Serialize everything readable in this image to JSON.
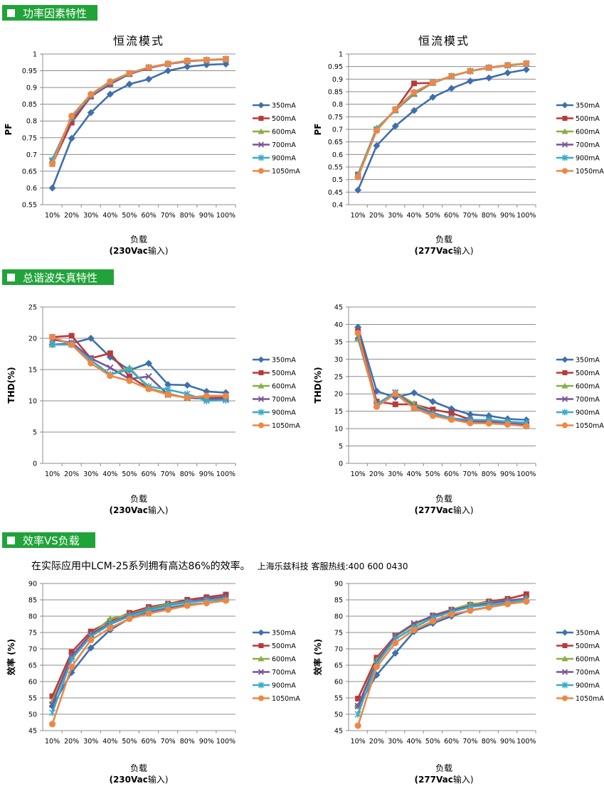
{
  "sections": {
    "pf": "功率因素特性",
    "thd": "总谐波失真特性",
    "eff": "效率VS负载"
  },
  "intro": {
    "text": "在实际应用中LCM-25系列拥有高达86%的效率。",
    "contact": "上海乐兹科技 客服热线:400 600 0430"
  },
  "colors": {
    "350mA": "#3f6fad",
    "500mA": "#b93a3a",
    "600mA": "#89ad4a",
    "700mA": "#7a5596",
    "900mA": "#3aaacb",
    "1050mA": "#ee8745",
    "header_bg": "#21a33a"
  },
  "charts": [
    {
      "title": "恒流模式",
      "xlabel": "负载",
      "sub_bold": "(230Vac",
      "sub_rest": "输入)"
    },
    {
      "title": "恒流模式",
      "xlabel": "负载",
      "sub_bold": "(277Vac",
      "sub_rest": "输入)"
    },
    {
      "title": "",
      "xlabel": "负载",
      "sub_bold": "(230Vac",
      "sub_rest": "输入)"
    },
    {
      "title": "",
      "xlabel": "负载",
      "sub_bold": "(277Vac",
      "sub_rest": "输入)"
    },
    {
      "title": "",
      "xlabel": "负载",
      "sub_bold": "(230Vac",
      "sub_rest": "输入)"
    },
    {
      "title": "",
      "xlabel": "负载",
      "sub_bold": "(277Vac",
      "sub_rest": "输入)"
    }
  ],
  "chart_data": [
    {
      "type": "line",
      "title": "恒流模式",
      "xlabel": "负载 (230Vac输入)",
      "ylabel": "PF",
      "ylim": [
        0.55,
        1
      ],
      "ystep": 0.05,
      "categories": [
        "10%",
        "20%",
        "30%",
        "40%",
        "50%",
        "60%",
        "70%",
        "80%",
        "90%",
        "100%"
      ],
      "grid": true,
      "legend": "right",
      "series": [
        {
          "name": "350mA",
          "values": [
            0.6,
            0.748,
            0.825,
            0.88,
            0.91,
            0.925,
            0.95,
            0.962,
            0.968,
            0.97
          ]
        },
        {
          "name": "500mA",
          "values": [
            0.672,
            0.795,
            0.873,
            0.91,
            0.94,
            0.958,
            0.97,
            0.978,
            0.982,
            0.985
          ]
        },
        {
          "name": "600mA",
          "values": [
            0.685,
            0.81,
            0.878,
            0.915,
            0.942,
            0.96,
            0.971,
            0.979,
            0.982,
            0.985
          ]
        },
        {
          "name": "700mA",
          "values": [
            0.68,
            0.805,
            0.875,
            0.912,
            0.941,
            0.959,
            0.97,
            0.979,
            0.982,
            0.984
          ]
        },
        {
          "name": "900mA",
          "values": [
            0.683,
            0.81,
            0.877,
            0.915,
            0.942,
            0.96,
            0.971,
            0.979,
            0.982,
            0.985
          ]
        },
        {
          "name": "1050mA",
          "values": [
            0.672,
            0.815,
            0.88,
            0.918,
            0.943,
            0.96,
            0.971,
            0.98,
            0.982,
            0.985
          ]
        }
      ]
    },
    {
      "type": "line",
      "title": "恒流模式",
      "xlabel": "负载 (277Vac输入)",
      "ylabel": "PF",
      "ylim": [
        0.4,
        1
      ],
      "ystep": 0.05,
      "categories": [
        "10%",
        "20%",
        "30%",
        "40%",
        "50%",
        "60%",
        "70%",
        "80%",
        "90%",
        "100%"
      ],
      "grid": true,
      "legend": "right",
      "series": [
        {
          "name": "350mA",
          "values": [
            0.458,
            0.635,
            0.713,
            0.775,
            0.828,
            0.863,
            0.892,
            0.905,
            0.925,
            0.938
          ]
        },
        {
          "name": "500mA",
          "values": [
            0.52,
            0.7,
            0.778,
            0.883,
            0.885,
            0.912,
            0.932,
            0.946,
            0.955,
            0.962
          ]
        },
        {
          "name": "600mA",
          "values": [
            0.52,
            0.705,
            0.775,
            0.84,
            0.885,
            0.912,
            0.932,
            0.946,
            0.955,
            0.962
          ]
        },
        {
          "name": "700mA",
          "values": [
            0.515,
            0.7,
            0.778,
            0.843,
            0.886,
            0.912,
            0.932,
            0.945,
            0.955,
            0.962
          ]
        },
        {
          "name": "900mA",
          "values": [
            0.515,
            0.7,
            0.778,
            0.845,
            0.886,
            0.912,
            0.932,
            0.946,
            0.955,
            0.962
          ]
        },
        {
          "name": "1050mA",
          "values": [
            0.51,
            0.695,
            0.78,
            0.848,
            0.886,
            0.912,
            0.932,
            0.946,
            0.956,
            0.962
          ]
        }
      ]
    },
    {
      "type": "line",
      "title": "",
      "xlabel": "负载 (230Vac输入)",
      "ylabel": "THD(%)",
      "ylim": [
        0,
        25
      ],
      "ystep": 5,
      "categories": [
        "10%",
        "20%",
        "30%",
        "40%",
        "50%",
        "60%",
        "70%",
        "80%",
        "90%",
        "100%"
      ],
      "grid": true,
      "legend": "right",
      "series": [
        {
          "name": "350mA",
          "values": [
            19.0,
            19.2,
            20.0,
            17.0,
            14.9,
            16.0,
            12.6,
            12.5,
            11.5,
            11.3
          ]
        },
        {
          "name": "500mA",
          "values": [
            20.2,
            20.4,
            16.8,
            17.6,
            13.9,
            12.0,
            11.0,
            10.5,
            10.5,
            10.6
          ]
        },
        {
          "name": "600mA",
          "values": [
            19.0,
            19.0,
            16.5,
            14.2,
            15.3,
            12.0,
            11.2,
            10.4,
            10.7,
            10.8
          ]
        },
        {
          "name": "700mA",
          "values": [
            19.8,
            19.3,
            16.8,
            15.3,
            13.5,
            13.9,
            11.0,
            10.5,
            10.3,
            10.3
          ]
        },
        {
          "name": "900mA",
          "values": [
            19.0,
            19.0,
            16.5,
            14.2,
            15.0,
            12.3,
            11.8,
            11.1,
            10.0,
            10.1
          ]
        },
        {
          "name": "1050mA",
          "values": [
            20.2,
            19.0,
            16.0,
            14.0,
            13.2,
            11.9,
            11.0,
            10.5,
            10.8,
            10.8
          ]
        }
      ]
    },
    {
      "type": "line",
      "title": "",
      "xlabel": "负载 (277Vac输入)",
      "ylabel": "THD(%)",
      "ylim": [
        0,
        45
      ],
      "ystep": 5,
      "categories": [
        "10%",
        "20%",
        "30%",
        "40%",
        "50%",
        "60%",
        "70%",
        "80%",
        "90%",
        "100%"
      ],
      "grid": true,
      "legend": "right",
      "series": [
        {
          "name": "350mA",
          "values": [
            39.2,
            20.8,
            19.0,
            20.3,
            17.8,
            15.7,
            14.1,
            13.7,
            12.8,
            12.5
          ]
        },
        {
          "name": "500mA",
          "values": [
            38.0,
            17.8,
            17.0,
            17.0,
            15.5,
            14.5,
            12.6,
            12.2,
            11.5,
            11.3
          ]
        },
        {
          "name": "600mA",
          "values": [
            36.0,
            17.0,
            20.4,
            17.2,
            14.5,
            13.0,
            12.2,
            12.0,
            11.8,
            11.5
          ]
        },
        {
          "name": "700mA",
          "values": [
            36.5,
            17.0,
            20.4,
            16.5,
            14.5,
            13.0,
            12.0,
            12.0,
            11.6,
            11.0
          ]
        },
        {
          "name": "900mA",
          "values": [
            36.8,
            17.0,
            20.3,
            16.0,
            14.2,
            13.0,
            12.5,
            12.5,
            12.0,
            11.7
          ]
        },
        {
          "name": "1050mA",
          "values": [
            37.5,
            16.3,
            20.0,
            15.9,
            13.7,
            12.6,
            11.6,
            11.5,
            11.2,
            10.7
          ]
        }
      ]
    },
    {
      "type": "line",
      "title": "",
      "xlabel": "负载 (230Vac输入)",
      "ylabel": "效率 (%)",
      "ylim": [
        45,
        90
      ],
      "ystep": 5,
      "categories": [
        "10%",
        "20%",
        "30%",
        "40%",
        "50%",
        "60%",
        "70%",
        "80%",
        "90%",
        "100%"
      ],
      "grid": true,
      "legend": "right",
      "series": [
        {
          "name": "350mA",
          "values": [
            52.5,
            62.8,
            70.3,
            75.8,
            79.3,
            81.2,
            82.5,
            83.5,
            84.0,
            84.8
          ]
        },
        {
          "name": "500mA",
          "values": [
            55.5,
            69.0,
            75.3,
            78.5,
            81.0,
            82.8,
            83.8,
            85.0,
            85.8,
            86.6
          ]
        },
        {
          "name": "600mA",
          "values": [
            54.0,
            67.5,
            74.3,
            79.2,
            80.5,
            82.3,
            83.7,
            84.4,
            85.0,
            85.6
          ]
        },
        {
          "name": "700mA",
          "values": [
            53.0,
            67.8,
            74.5,
            77.8,
            80.3,
            82.0,
            83.3,
            84.3,
            85.3,
            86.0
          ]
        },
        {
          "name": "900mA",
          "values": [
            50.5,
            66.8,
            73.8,
            77.5,
            80.0,
            81.8,
            83.2,
            84.2,
            84.8,
            85.1
          ]
        },
        {
          "name": "1050mA",
          "values": [
            47.0,
            64.5,
            72.7,
            76.4,
            79.2,
            80.8,
            82.0,
            83.2,
            84.0,
            84.8
          ]
        }
      ]
    },
    {
      "type": "line",
      "title": "",
      "xlabel": "负载 (277Vac输入)",
      "ylabel": "效率 (%)",
      "ylim": [
        45,
        90
      ],
      "ystep": 5,
      "categories": [
        "10%",
        "20%",
        "30%",
        "40%",
        "50%",
        "60%",
        "70%",
        "80%",
        "90%",
        "100%"
      ],
      "grid": true,
      "legend": "right",
      "series": [
        {
          "name": "350mA",
          "values": [
            52.5,
            62.0,
            68.7,
            75.3,
            77.8,
            80.0,
            81.8,
            82.8,
            83.8,
            84.5
          ]
        },
        {
          "name": "500mA",
          "values": [
            54.8,
            67.3,
            74.0,
            77.3,
            80.2,
            82.0,
            83.5,
            84.5,
            85.3,
            86.7
          ]
        },
        {
          "name": "600mA",
          "values": [
            52.5,
            66.5,
            73.8,
            77.3,
            80.0,
            82.0,
            83.7,
            84.2,
            84.8,
            85.5
          ]
        },
        {
          "name": "700mA",
          "values": [
            52.5,
            66.0,
            74.0,
            77.8,
            80.0,
            81.8,
            83.0,
            84.0,
            84.8,
            85.2
          ]
        },
        {
          "name": "900mA",
          "values": [
            50.0,
            65.5,
            73.0,
            76.5,
            79.5,
            81.3,
            82.8,
            83.5,
            84.2,
            85.0
          ]
        },
        {
          "name": "1050mA",
          "values": [
            46.5,
            64.5,
            71.8,
            75.8,
            78.5,
            80.6,
            81.7,
            82.7,
            83.7,
            84.5
          ]
        }
      ]
    }
  ]
}
